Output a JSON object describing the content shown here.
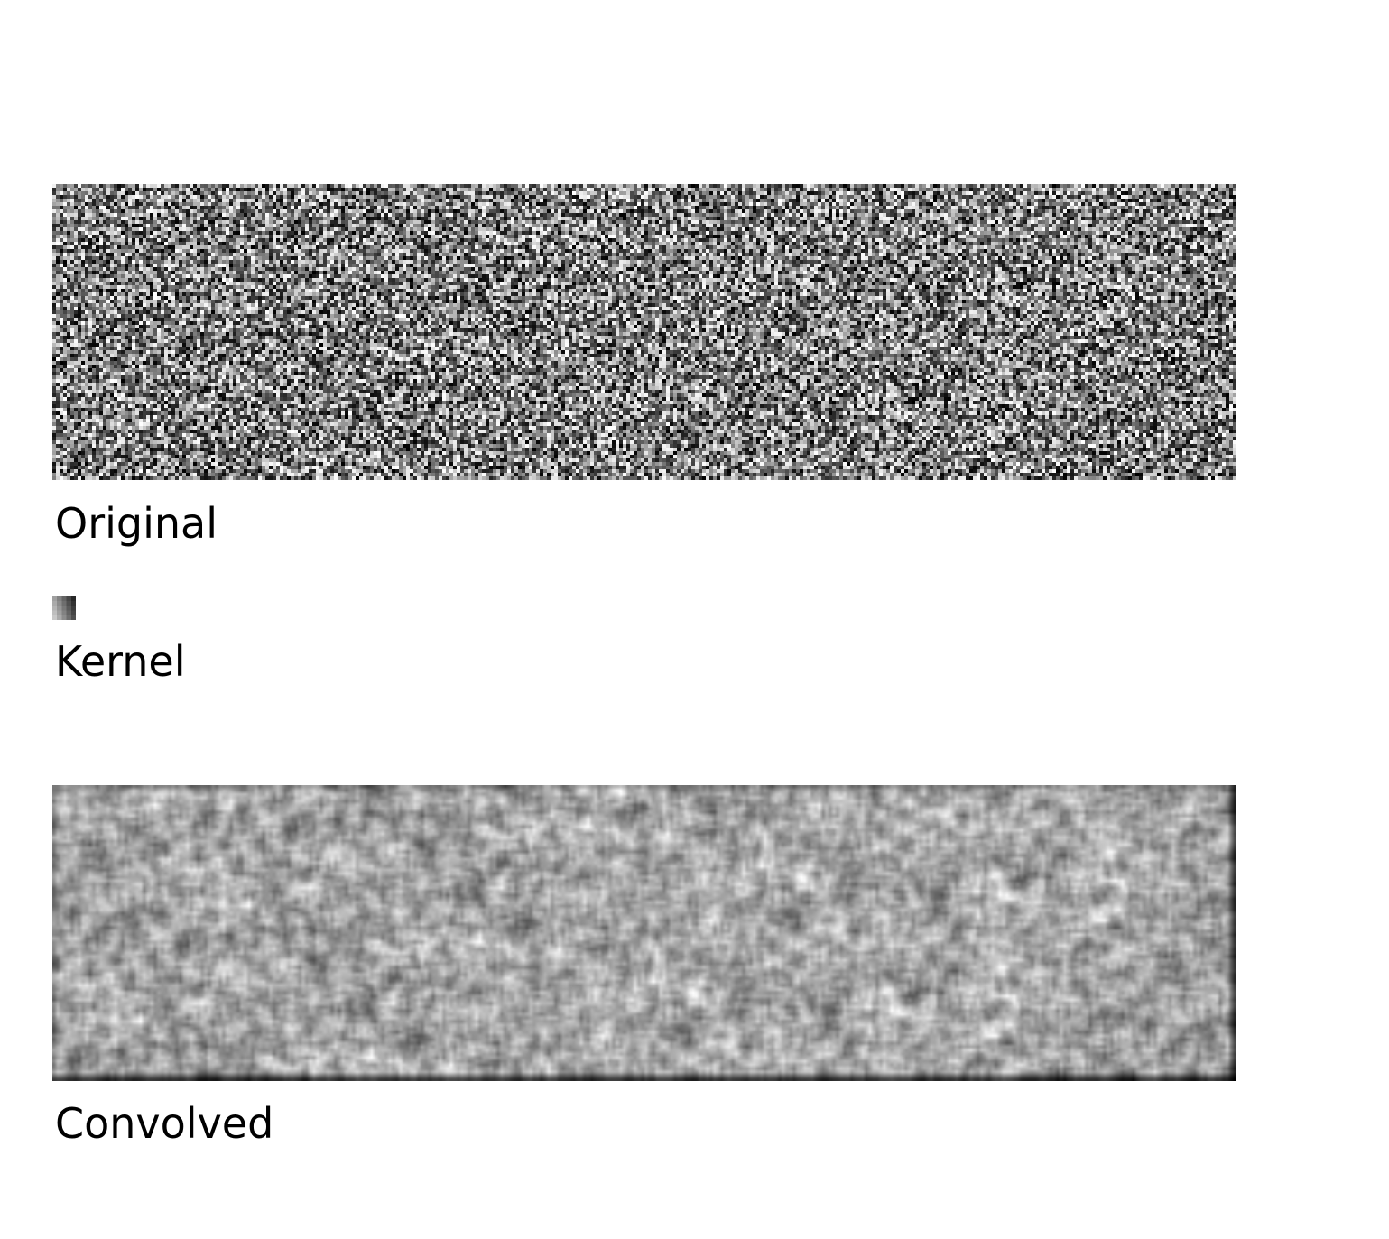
{
  "panels": {
    "original": {
      "label": "Original",
      "description_kind": "random-noise"
    },
    "kernel": {
      "label": "Kernel",
      "description_kind": "small-gradient-kernel"
    },
    "convolved": {
      "label": "Convolved",
      "description_kind": "blurred-noise"
    }
  },
  "colors": {
    "background": "#ffffff",
    "text": "#000000"
  }
}
